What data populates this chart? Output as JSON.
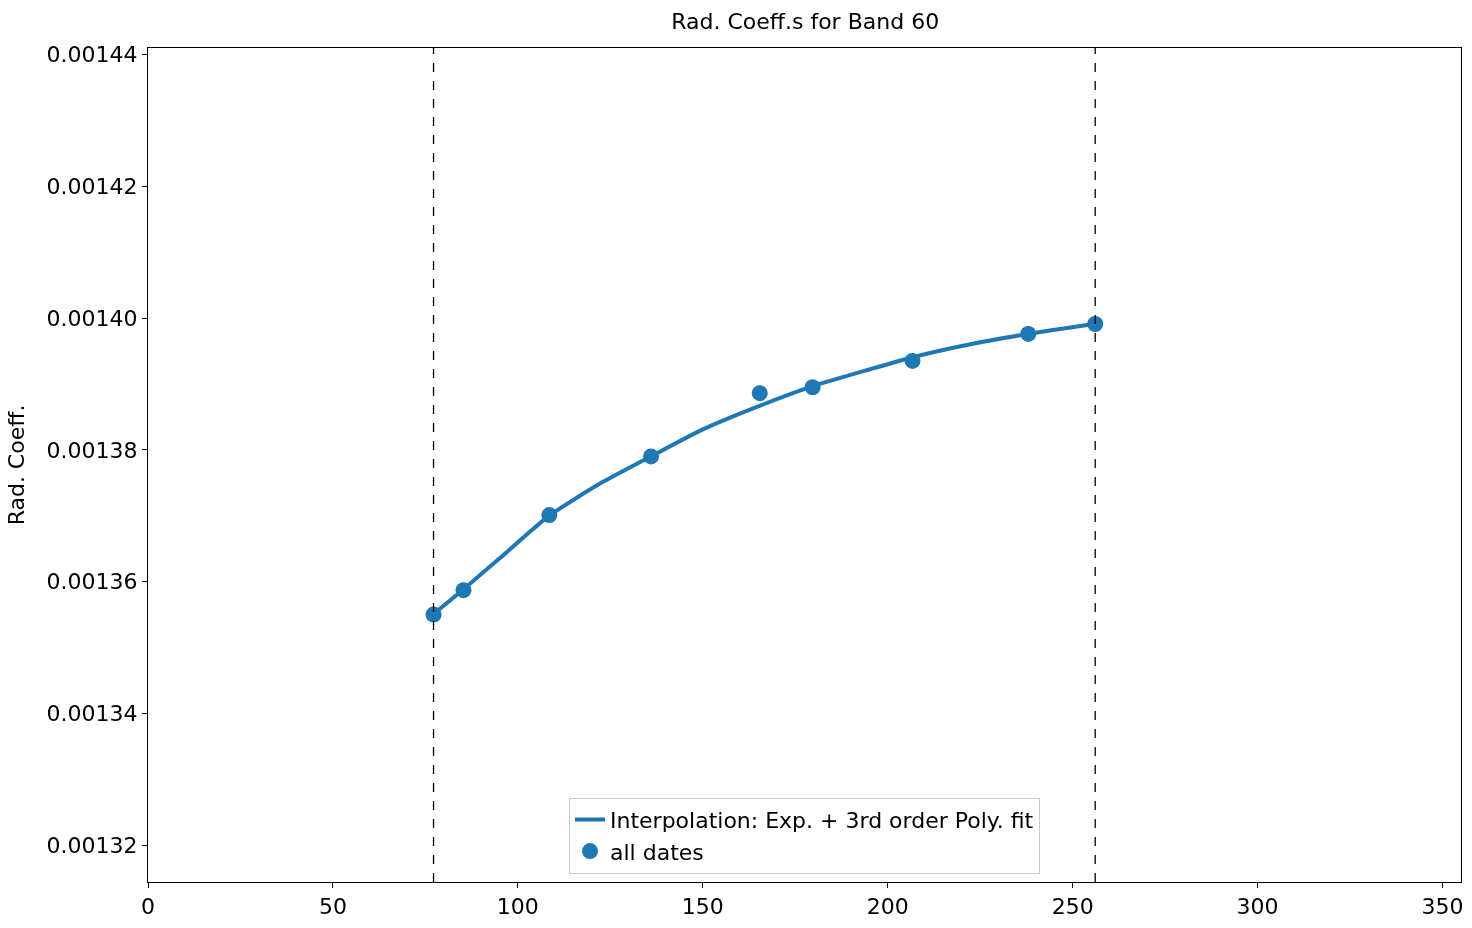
{
  "chart_data": {
    "type": "scatter",
    "title": "Rad. Coeff.s for Band 60",
    "ylabel": "Rad. Coeff.",
    "x": [
      77.2,
      85.3,
      108.5,
      136,
      165.4,
      179.7,
      206.7,
      238,
      256.1
    ],
    "series": [
      {
        "name": "Interpolation: Exp. + 3rd order Poly. fit",
        "type": "line",
        "color": "#1f77b4",
        "x": [
          77,
          85,
          95,
          108.5,
          122,
          136,
          150,
          165,
          180,
          195,
          207,
          222,
          238,
          256
        ],
        "values": [
          0.001355,
          0.0013587,
          0.0013635,
          0.00137,
          0.0013748,
          0.001379,
          0.0013831,
          0.0013866,
          0.0013897,
          0.0013922,
          0.0013941,
          0.001396,
          0.0013976,
          0.0013991
        ]
      },
      {
        "name": "all dates",
        "color": "#1f77b4",
        "marker": "circle",
        "values": [
          0.001355,
          0.0013587,
          0.0013701,
          0.001379,
          0.0013886,
          0.0013895,
          0.0013935,
          0.0013976,
          0.0013991
        ]
      }
    ],
    "xlim": [
      0,
      355
    ],
    "xticks": [
      0,
      50,
      100,
      150,
      200,
      250,
      300,
      350
    ],
    "ylim": [
      0.0013144,
      0.001441
    ],
    "yticks": [
      {
        "value": 0.00132,
        "label": "0.00132"
      },
      {
        "value": 0.00134,
        "label": "0.00134"
      },
      {
        "value": 0.00136,
        "label": "0.00136"
      },
      {
        "value": 0.00138,
        "label": "0.00138"
      },
      {
        "value": 0.0014,
        "label": "0.00140"
      },
      {
        "value": 0.00142,
        "label": "0.00142"
      },
      {
        "value": 0.00144,
        "label": "0.00144"
      }
    ],
    "ref_lines": [
      {
        "axis": "x",
        "value": 77.2,
        "color": "#000000",
        "line_style": "dashed"
      },
      {
        "axis": "x",
        "value": 256.1,
        "color": "#000000",
        "line_style": "dashed"
      }
    ],
    "legend": "bottom"
  }
}
